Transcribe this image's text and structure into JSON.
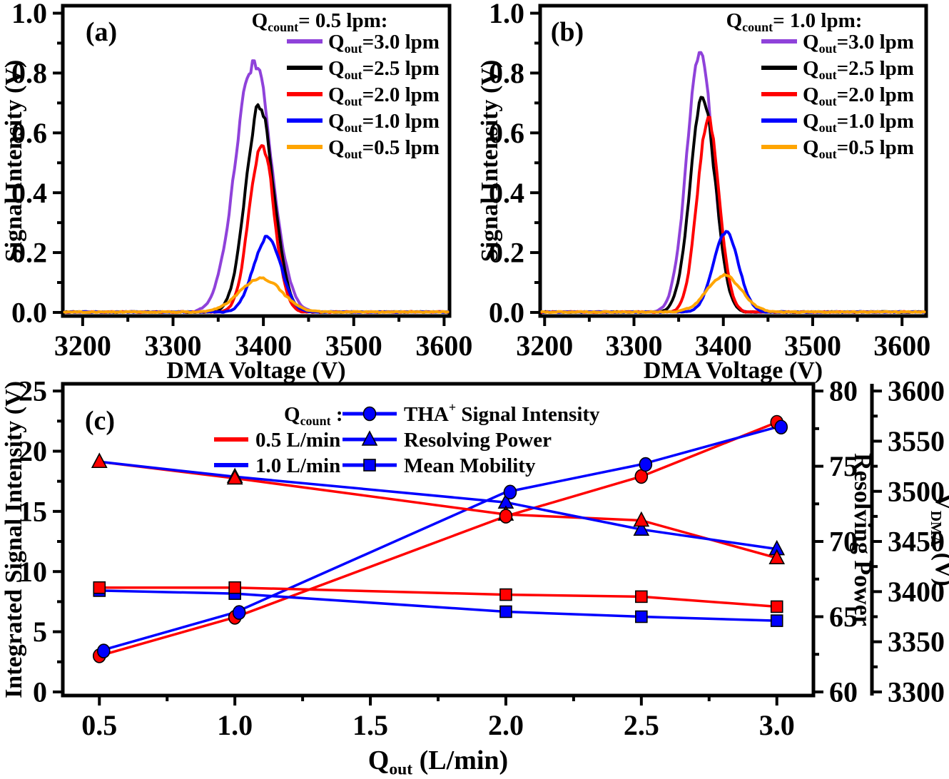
{
  "figure": {
    "background": "#ffffff",
    "colors": {
      "purple": "#8F42DA",
      "black": "#000000",
      "red": "#FF0000",
      "blue": "#0000FF",
      "orange": "#FFA500"
    }
  },
  "chart_data": [
    {
      "id": "a",
      "type": "line",
      "panel_label": "(a)",
      "xlabel": "DMA Voltage (V)",
      "ylabel": "Signal Intensity (V)",
      "xlim": [
        3178,
        3606
      ],
      "ylim": [
        -0.012,
        1.025
      ],
      "xticks": [
        3200,
        3300,
        3400,
        3500,
        3600
      ],
      "xtick_labels": [
        "3200",
        "3300",
        "3400",
        "3500",
        "3600"
      ],
      "yticks": [
        0.0,
        0.2,
        0.4,
        0.6,
        0.8,
        1.0
      ],
      "ytick_labels": [
        "0.0",
        "0.2",
        "0.4",
        "0.6",
        "0.8",
        "1.0"
      ],
      "x_minor_step": 50,
      "y_minor_step": 0.1,
      "legend_title": "Q_{count}= 0.5 lpm:",
      "baseline": 0.0,
      "series": [
        {
          "label": "Q_{out}=3.0 lpm",
          "color": "#8F42DA",
          "peak": {
            "center": 3389,
            "height": 0.84,
            "sigma": 20
          },
          "seed": 11
        },
        {
          "label": "Q_{out}=2.5 lpm",
          "color": "#000000",
          "peak": {
            "center": 3396,
            "height": 0.69,
            "sigma": 15.5
          },
          "seed": 12
        },
        {
          "label": "Q_{out}=2.0 lpm",
          "color": "#FF0000",
          "peak": {
            "center": 3398,
            "height": 0.57,
            "sigma": 13.5
          },
          "seed": 13
        },
        {
          "label": "Q_{out}=1.0 lpm",
          "color": "#0000FF",
          "peak": {
            "center": 3404,
            "height": 0.255,
            "sigma": 15
          },
          "seed": 14
        },
        {
          "label": "Q_{out}=0.5 lpm",
          "color": "#FFA500",
          "peak": {
            "center": 3397,
            "height": 0.115,
            "sigma": 23
          },
          "seed": 15
        }
      ]
    },
    {
      "id": "b",
      "type": "line",
      "panel_label": "(b)",
      "xlabel": "DMA Voltage (V)",
      "ylabel": "Signal Intensity (V)",
      "xlim": [
        3195,
        3627
      ],
      "ylim": [
        -0.012,
        1.025
      ],
      "xticks": [
        3200,
        3300,
        3400,
        3500,
        3600
      ],
      "xtick_labels": [
        "3200",
        "3300",
        "3400",
        "3500",
        "3600"
      ],
      "yticks": [
        0.0,
        0.2,
        0.4,
        0.6,
        0.8,
        1.0
      ],
      "ytick_labels": [
        "0.0",
        "0.2",
        "0.4",
        "0.6",
        "0.8",
        "1.0"
      ],
      "x_minor_step": 50,
      "y_minor_step": 0.1,
      "legend_title": "Q_{count}= 1.0 lpm:",
      "baseline": 0.0,
      "series": [
        {
          "label": "Q_{out}=3.0 lpm",
          "color": "#8F42DA",
          "peak": {
            "center": 3374,
            "height": 0.86,
            "sigma": 15
          },
          "seed": 21
        },
        {
          "label": "Q_{out}=2.5 lpm",
          "color": "#000000",
          "peak": {
            "center": 3377,
            "height": 0.73,
            "sigma": 14
          },
          "seed": 22
        },
        {
          "label": "Q_{out}=2.0 lpm",
          "color": "#FF0000",
          "peak": {
            "center": 3383,
            "height": 0.64,
            "sigma": 12.5
          },
          "seed": 23
        },
        {
          "label": "Q_{out}=1.0 lpm",
          "color": "#0000FF",
          "peak": {
            "center": 3403,
            "height": 0.27,
            "sigma": 14
          },
          "seed": 24
        },
        {
          "label": "Q_{out}=0.5 lpm",
          "color": "#FFA500",
          "peak": {
            "center": 3401,
            "height": 0.125,
            "sigma": 19
          },
          "seed": 25
        }
      ]
    },
    {
      "id": "c",
      "type": "scatter",
      "panel_label": "(c)",
      "xlabel": "Q_{out} (L/min)",
      "ylabel_left": "Integrated Signal Intensity (V)",
      "ylabel_right1": "Resolving Power",
      "ylabel_right2": "V_{DMA} (V)",
      "xlim": [
        0.365,
        3.135
      ],
      "ylim_left": [
        -0.3,
        25.6
      ],
      "xticks": [
        0.5,
        1.0,
        1.5,
        2.0,
        2.5,
        3.0
      ],
      "xtick_labels": [
        "0.5",
        "1.0",
        "1.5",
        "2.0",
        "2.5",
        "3.0"
      ],
      "yticks_left": [
        0,
        5,
        10,
        15,
        20,
        25
      ],
      "ytick_labels_left": [
        "0",
        "5",
        "10",
        "15",
        "20",
        "25"
      ],
      "yticks_right1": [
        60,
        65,
        70,
        75,
        80
      ],
      "ytick_labels_right1": [
        "60",
        "65",
        "70",
        "75",
        "80"
      ],
      "yticks_right2": [
        3300,
        3350,
        3400,
        3450,
        3500,
        3550,
        3600
      ],
      "ytick_labels_right2": [
        "3300",
        "3350",
        "3400",
        "3450",
        "3500",
        "3550",
        "3600"
      ],
      "x_minor_step": 0.25,
      "y_minor_step_left": 2.5,
      "y_minor_step_right1": 2.5,
      "y_minor_step_right2": 25,
      "legend": {
        "qcount_title": "Q_{count} :",
        "line_entries": [
          {
            "label": "0.5 L/min",
            "color": "#FF0000"
          },
          {
            "label": "1.0 L/min",
            "color": "#0000FF"
          }
        ],
        "marker_entries": [
          {
            "label": "THA^{+} Signal Intensity",
            "marker": "circle"
          },
          {
            "label": "Resolving Power",
            "marker": "triangle"
          },
          {
            "label": "Mean Mobility",
            "marker": "square"
          }
        ],
        "marker_color": "#0000FF"
      },
      "x": [
        0.5,
        1.0,
        2.0,
        2.5,
        3.0
      ],
      "series": [
        {
          "name": "integrated-signal-qcount-0.5",
          "axis": "left",
          "marker": "circle",
          "color": "#FF0000",
          "values": [
            3.0,
            6.2,
            14.6,
            17.9,
            22.4
          ]
        },
        {
          "name": "integrated-signal-qcount-1.0",
          "axis": "left",
          "marker": "circle",
          "color": "#0000FF",
          "values": [
            3.4,
            6.6,
            16.6,
            18.9,
            22.0
          ]
        },
        {
          "name": "resolving-power-qcount-0.5",
          "axis": "right1",
          "marker": "triangle",
          "color": "#FF0000",
          "values": [
            75.3,
            74.2,
            71.8,
            71.4,
            68.9
          ]
        },
        {
          "name": "resolving-power-qcount-1.0",
          "axis": "right1",
          "marker": "triangle",
          "color": "#0000FF",
          "values": [
            75.3,
            74.3,
            72.6,
            70.8,
            69.5
          ]
        },
        {
          "name": "vdma-qcount-0.5",
          "axis": "right2",
          "marker": "square",
          "color": "#FF0000",
          "values": [
            3404,
            3404,
            3397,
            3395,
            3385
          ]
        },
        {
          "name": "vdma-qcount-1.0",
          "axis": "right2",
          "marker": "square",
          "color": "#0000FF",
          "values": [
            3401,
            3398,
            3380,
            3375,
            3371
          ]
        }
      ]
    }
  ]
}
